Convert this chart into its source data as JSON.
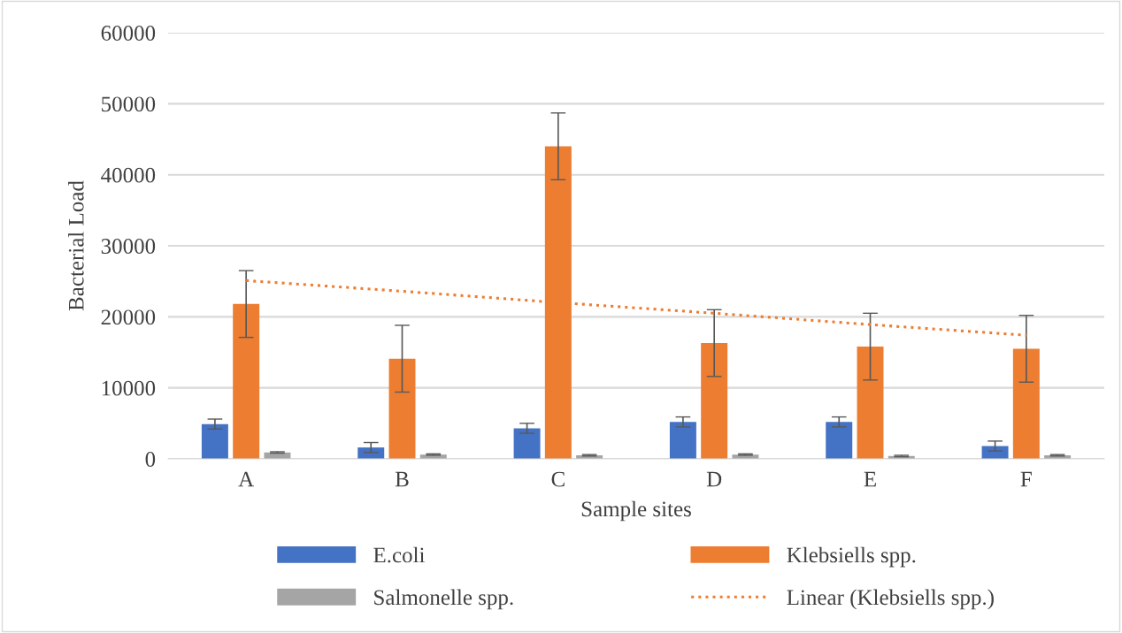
{
  "chart_data": {
    "type": "bar",
    "xlabel": "Sample sites",
    "ylabel": "Bacterial Load",
    "categories": [
      "A",
      "B",
      "C",
      "D",
      "E",
      "F"
    ],
    "series": [
      {
        "name": "E.coli",
        "color": "#4472c4",
        "values": [
          4900,
          1600,
          4300,
          5200,
          5200,
          1800
        ],
        "errors": [
          700,
          700,
          700,
          700,
          700,
          700
        ]
      },
      {
        "name": "Klebsiells spp.",
        "color": "#ed7d31",
        "values": [
          21800,
          14100,
          44000,
          16300,
          15800,
          15500
        ],
        "errors": [
          4700,
          4700,
          4700,
          4700,
          4700,
          4700
        ]
      },
      {
        "name": "Salmonelle spp.",
        "color": "#a5a5a5",
        "values": [
          900,
          600,
          500,
          600,
          400,
          500
        ],
        "errors": [
          100,
          100,
          100,
          100,
          100,
          100
        ]
      },
      {
        "name": "Linear (Klebsiells spp.)",
        "color": "#ed7d31",
        "type": "line",
        "line_style": "dotted",
        "values": [
          25100,
          23600,
          22000,
          20500,
          18900,
          17400
        ]
      }
    ],
    "ylim": [
      0,
      60000
    ],
    "yticks": [
      0,
      10000,
      20000,
      30000,
      40000,
      50000,
      60000
    ],
    "grid": "y",
    "legend": "bottom"
  }
}
